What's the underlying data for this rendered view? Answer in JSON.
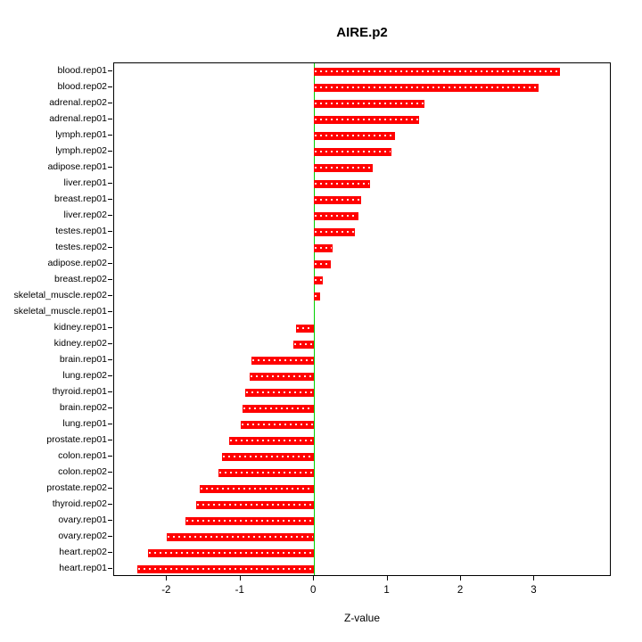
{
  "title": "AIRE.p2",
  "chart_data": {
    "type": "bar",
    "orientation": "horizontal",
    "title": "AIRE.p2",
    "xlabel": "Z-value",
    "xlim": [
      -2.72,
      4.05
    ],
    "xticks": [
      -2,
      -1,
      0,
      1,
      2,
      3
    ],
    "bar_color": "#ff0000",
    "zero_line_color": "#00d000",
    "grid": false,
    "legend": "none",
    "categories": [
      "blood.rep01",
      "blood.rep02",
      "adrenal.rep02",
      "adrenal.rep01",
      "lymph.rep01",
      "lymph.rep02",
      "adipose.rep01",
      "liver.rep01",
      "breast.rep01",
      "liver.rep02",
      "testes.rep01",
      "testes.rep02",
      "adipose.rep02",
      "breast.rep02",
      "skeletal_muscle.rep02",
      "skeletal_muscle.rep01",
      "kidney.rep01",
      "kidney.rep02",
      "brain.rep01",
      "lung.rep02",
      "thyroid.rep01",
      "brain.rep02",
      "lung.rep01",
      "prostate.rep01",
      "colon.rep01",
      "colon.rep02",
      "prostate.rep02",
      "thyroid.rep02",
      "ovary.rep01",
      "ovary.rep02",
      "heart.rep02",
      "heart.rep01"
    ],
    "values": [
      3.35,
      3.05,
      1.5,
      1.43,
      1.1,
      1.05,
      0.8,
      0.76,
      0.64,
      0.6,
      0.55,
      0.25,
      0.23,
      0.12,
      0.08,
      0.0,
      -0.25,
      -0.28,
      -0.85,
      -0.88,
      -0.94,
      -0.97,
      -1.0,
      -1.15,
      -1.25,
      -1.3,
      -1.55,
      -1.6,
      -1.75,
      -2.0,
      -2.26,
      -2.4
    ]
  }
}
